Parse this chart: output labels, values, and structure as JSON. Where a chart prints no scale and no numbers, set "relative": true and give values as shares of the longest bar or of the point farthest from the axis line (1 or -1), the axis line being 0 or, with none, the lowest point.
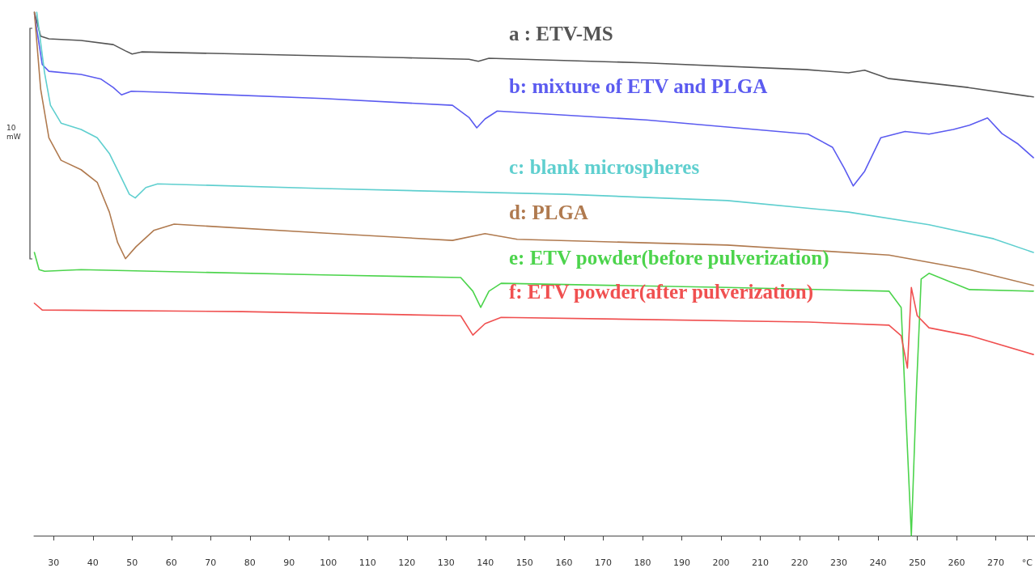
{
  "chart_data": {
    "type": "line",
    "relative": true,
    "xlim": [
      25,
      280
    ],
    "xticks": [
      30,
      40,
      50,
      60,
      70,
      80,
      90,
      100,
      110,
      120,
      130,
      140,
      150,
      160,
      170,
      180,
      190,
      200,
      210,
      220,
      230,
      240,
      250,
      260,
      270,
      {
        "value": 278,
        "label": "°C"
      }
    ],
    "annotations": [
      "10 mW"
    ],
    "grid": false,
    "legend": false,
    "marker": "none",
    "line_style": "solid",
    "series": [
      {
        "name": "a : ETV-MS",
        "color": "#555555",
        "x": [
          25.1,
          26.7,
          28.8,
          37,
          45.2,
          48.3,
          50,
          52.4,
          78,
          119,
          135.8,
          138.2,
          140.9,
          181,
          222,
          232.5,
          236.6,
          242.8,
          263,
          279.6
        ],
        "values": [
          1.0,
          0.954,
          0.949,
          0.946,
          0.938,
          0.926,
          0.92,
          0.924,
          0.92,
          0.913,
          0.91,
          0.906,
          0.912,
          0.903,
          0.89,
          0.884,
          0.889,
          0.873,
          0.856,
          0.838
        ]
      },
      {
        "name": "b: mixture of ETV and PLGA",
        "color": "#5b5bf0",
        "x": [
          25.1,
          27.1,
          28.8,
          37,
          42.1,
          45.2,
          47.3,
          49.8,
          57.6,
          98.7,
          131.6,
          135.8,
          137.8,
          139.9,
          143,
          181,
          222.2,
          228.4,
          231.4,
          233.7,
          236.6,
          240.7,
          246.9,
          253,
          259.2,
          263.3,
          267.9,
          271.6,
          275.7,
          279.6
        ],
        "values": [
          0.997,
          0.9,
          0.887,
          0.881,
          0.872,
          0.856,
          0.842,
          0.849,
          0.847,
          0.835,
          0.822,
          0.799,
          0.779,
          0.796,
          0.811,
          0.794,
          0.767,
          0.742,
          0.702,
          0.668,
          0.696,
          0.76,
          0.772,
          0.767,
          0.776,
          0.784,
          0.798,
          0.768,
          0.748,
          0.722
        ]
      },
      {
        "name": "c: blank microspheres",
        "color": "#5fcfcf",
        "x": [
          25.7,
          27.7,
          29.2,
          31.9,
          37,
          41.1,
          44.2,
          47.3,
          49.3,
          50.8,
          53.5,
          56.5,
          98.7,
          160.5,
          201.6,
          232.5,
          253,
          269.5,
          279.6
        ],
        "values": [
          1.0,
          0.884,
          0.822,
          0.788,
          0.776,
          0.76,
          0.73,
          0.683,
          0.652,
          0.645,
          0.665,
          0.672,
          0.663,
          0.652,
          0.64,
          0.618,
          0.594,
          0.567,
          0.541
        ]
      },
      {
        "name": "d: PLGA",
        "color": "#b07a4f",
        "x": [
          25.1,
          26.7,
          28.8,
          31.9,
          37,
          41.1,
          44.2,
          46.3,
          48.3,
          51,
          55.5,
          60.7,
          98.7,
          131.6,
          139.9,
          148.1,
          201.6,
          242.8,
          263.3,
          279.6
        ],
        "values": [
          1.0,
          0.853,
          0.76,
          0.717,
          0.699,
          0.675,
          0.618,
          0.56,
          0.529,
          0.552,
          0.583,
          0.595,
          0.578,
          0.564,
          0.577,
          0.566,
          0.555,
          0.536,
          0.508,
          0.478
        ]
      },
      {
        "name": "e: ETV powder(before pulverization)",
        "color": "#4cd44c",
        "x": [
          25.1,
          26.3,
          27.7,
          37,
          98.7,
          133.7,
          136.8,
          138.8,
          140.9,
          144,
          201.6,
          242.8,
          245.9,
          247,
          248.5,
          249.8,
          251,
          253,
          263.3,
          279.6
        ],
        "values": [
          0.541,
          0.508,
          0.505,
          0.508,
          0.498,
          0.493,
          0.467,
          0.436,
          0.467,
          0.482,
          0.474,
          0.467,
          0.436,
          0.25,
          0.0,
          0.278,
          0.49,
          0.501,
          0.47,
          0.467
        ]
      },
      {
        "name": "f: ETV powder(after pulverization)",
        "color": "#f05050",
        "x": [
          25.1,
          27.1,
          78.1,
          133.7,
          136.8,
          139.9,
          144,
          222.2,
          242.8,
          245.9,
          247.5,
          248.5,
          250,
          253,
          263.3,
          279.6
        ],
        "values": [
          0.444,
          0.431,
          0.428,
          0.42,
          0.383,
          0.405,
          0.417,
          0.408,
          0.402,
          0.382,
          0.32,
          0.474,
          0.42,
          0.397,
          0.382,
          0.346
        ]
      }
    ]
  }
}
